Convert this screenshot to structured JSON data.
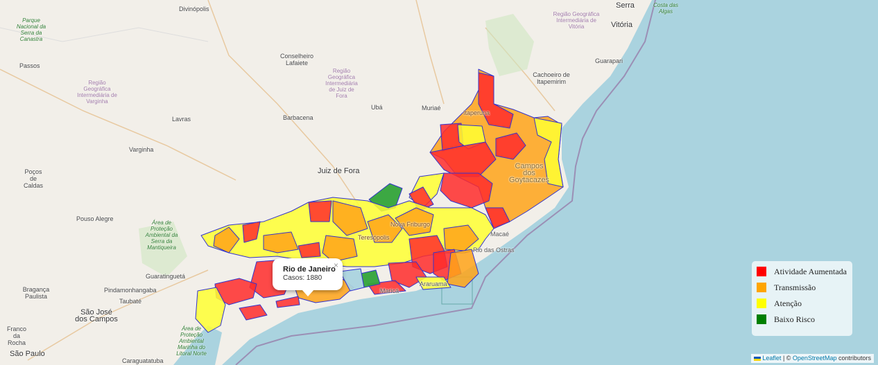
{
  "map": {
    "colors": {
      "land": "#f2efe9",
      "sea": "#aad3df",
      "high": "#ff2b2b",
      "transmission": "#ffa319",
      "attention": "#ffff33",
      "low": "#31a33a",
      "border": "#3333cc"
    },
    "cities": {
      "divinopolis": "Divinópolis",
      "serra": "Serra",
      "vitoria": "Vitória",
      "passos": "Passos",
      "conselheiro": "Conselheiro Lafaiete",
      "guarapari": "Guarapari",
      "cachoeiro": "Cachoeiro de Itapemirim",
      "uba": "Ubá",
      "muriae": "Muriaé",
      "barbacena": "Barbacena",
      "lavras": "Lavras",
      "varginha": "Varginha",
      "juiz": "Juiz de Fora",
      "pocos": "Poços de Caldas",
      "campos": "Campos dos Goytacazes",
      "pouso": "Pouso Alegre",
      "guaratingueta": "Guaratinguetá",
      "pindamonhangaba": "Pindamonhangaba",
      "braganca": "Bragança Paulista",
      "taubate": "Taubaté",
      "sjcampos": "São José dos Campos",
      "franco": "Franco da Rocha",
      "sao_paulo": "São Paulo",
      "caraguatatuba": "Caraguatatuba",
      "itaperuna": "Itaperuna",
      "macae": "Macaé",
      "rio_ostras": "Rio das Ostras",
      "nova_friburgo": "Nova Friburgo",
      "teresopolis": "Teresópolis",
      "marica": "Maricá",
      "araruama": "Araruama"
    },
    "regions": {
      "varginha_region": "Região Geográfica Intermediária de Varginha",
      "juiz_region": "Região Geográfica Intermediária de Juiz de Fora",
      "vitoria_region": "Região Geográfica Intermediária de Vitória"
    },
    "parks": {
      "canastra": "Parque Nacional da Serra da Canastra",
      "mantiqueira": "Área de Proteção Ambiental da Serra da Mantiqueira",
      "litoral_norte": "Área de Proteção Ambiental Marinha do Litoral Norte",
      "costa_algas": "Costa das Algas"
    }
  },
  "popup": {
    "title": "Rio de Janeiro",
    "cases": "Casos: 1880",
    "close": "×"
  },
  "legend": {
    "items": [
      {
        "label": "Atividade Aumentada",
        "color": "#ff0000"
      },
      {
        "label": "Transmissão",
        "color": "#ffa500"
      },
      {
        "label": "Atenção",
        "color": "#ffff00"
      },
      {
        "label": "Baixo Risco",
        "color": "#008000"
      }
    ]
  },
  "attribution": {
    "leaflet": "Leaflet",
    "separator": " | © ",
    "osm": "OpenStreetMap",
    "suffix": " contributors"
  }
}
